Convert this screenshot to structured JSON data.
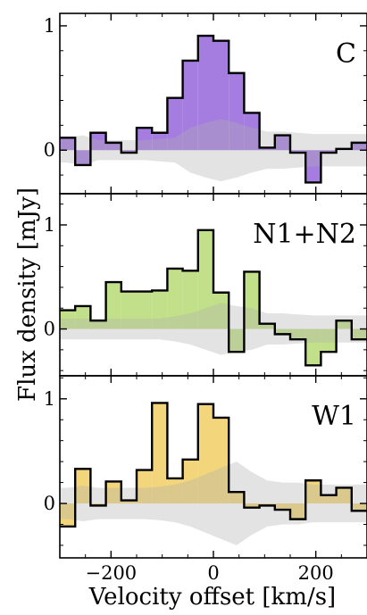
{
  "chart_data": {
    "type": "histogram-step",
    "xlabel": "Velocity offset [km/s]",
    "ylabel": "Flux density [mJy]",
    "xlim": [
      -300,
      300
    ],
    "x_ticks": [
      -200,
      0,
      200
    ],
    "x_tick_labels": [
      "−200",
      "0",
      "200"
    ],
    "bin_edges": [
      -300,
      -270,
      -240,
      -210,
      -180,
      -150,
      -120,
      -90,
      -60,
      -30,
      0,
      30,
      60,
      90,
      120,
      150,
      180,
      210,
      240,
      270,
      300
    ],
    "panels": [
      {
        "label": "C",
        "color": "#a57de0",
        "ylim": [
          -0.35,
          1.1
        ],
        "y_ticks": [
          0,
          1
        ],
        "y_tick_labels": [
          "0",
          "1"
        ],
        "values": [
          0.1,
          -0.12,
          0.14,
          0.06,
          -0.02,
          0.18,
          0.14,
          0.42,
          0.72,
          0.92,
          0.88,
          0.62,
          0.3,
          0.02,
          0.12,
          -0.02,
          -0.26,
          -0.02,
          0.01,
          0.06
        ],
        "noise_band": [
          0.1,
          0.12,
          0.08,
          0.08,
          0.08,
          0.08,
          0.09,
          0.1,
          0.18,
          0.22,
          0.25,
          0.22,
          0.18,
          0.15,
          0.15,
          0.14,
          0.13,
          0.13,
          0.13,
          0.13
        ]
      },
      {
        "label": "N1+N2",
        "color": "#c2e089",
        "ylim": [
          -0.45,
          1.3
        ],
        "y_ticks": [
          0,
          1
        ],
        "y_tick_labels": [
          "0",
          "1"
        ],
        "values": [
          0.18,
          0.22,
          0.08,
          0.45,
          0.36,
          0.36,
          0.37,
          0.58,
          0.56,
          0.95,
          0.35,
          -0.22,
          0.55,
          0.05,
          -0.05,
          -0.1,
          -0.35,
          -0.22,
          0.08,
          -0.1
        ],
        "noise_band": [
          0.1,
          0.1,
          0.1,
          0.1,
          0.1,
          0.1,
          0.1,
          0.12,
          0.15,
          0.2,
          0.25,
          0.22,
          0.2,
          0.15,
          0.15,
          0.14,
          0.13,
          0.13,
          0.13,
          0.13
        ]
      },
      {
        "label": "W1",
        "color": "#f3d67c",
        "ylim": [
          -0.52,
          1.22
        ],
        "y_ticks": [
          0,
          1
        ],
        "y_tick_labels": [
          "0",
          "1"
        ],
        "values": [
          -0.22,
          0.33,
          -0.02,
          0.21,
          0.03,
          0.32,
          0.96,
          0.24,
          0.42,
          0.95,
          0.82,
          0.11,
          -0.04,
          -0.02,
          -0.06,
          -0.15,
          0.22,
          0.08,
          0.15,
          -0.07
        ],
        "noise_band": [
          0.15,
          0.17,
          0.15,
          0.15,
          0.15,
          0.15,
          0.16,
          0.18,
          0.22,
          0.28,
          0.34,
          0.4,
          0.3,
          0.22,
          0.2,
          0.2,
          0.18,
          0.18,
          0.18,
          0.18
        ]
      }
    ]
  }
}
